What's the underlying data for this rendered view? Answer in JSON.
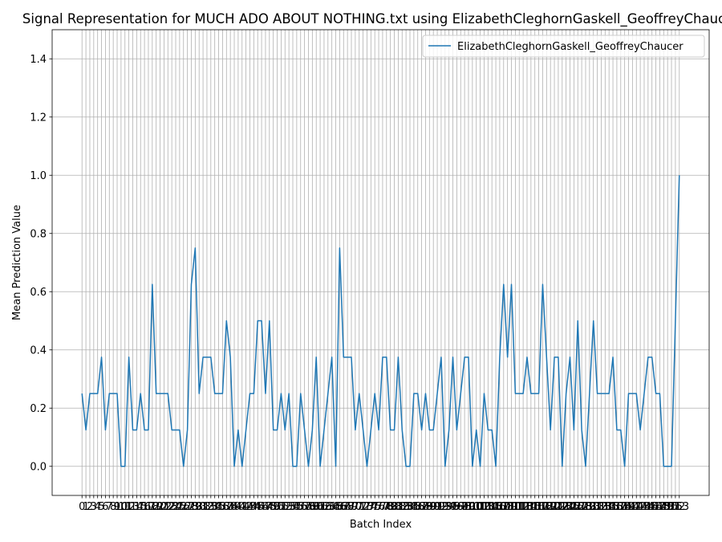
{
  "chart_data": {
    "type": "line",
    "title": "Signal Representation for MUCH ADO ABOUT NOTHING.txt using ElizabethCleghornGaskell_GeoffreyChaucer",
    "xlabel": "Batch Index",
    "ylabel": "Mean Prediction Value",
    "x": [
      0,
      1,
      2,
      3,
      4,
      5,
      6,
      7,
      8,
      9,
      10,
      11,
      12,
      13,
      14,
      15,
      16,
      17,
      18,
      19,
      20,
      21,
      22,
      23,
      24,
      25,
      26,
      27,
      28,
      29,
      30,
      31,
      32,
      33,
      34,
      35,
      36,
      37,
      38,
      39,
      40,
      41,
      42,
      43,
      44,
      45,
      46,
      47,
      48,
      49,
      50,
      51,
      52,
      53,
      54,
      55,
      56,
      57,
      58,
      59,
      60,
      61,
      62,
      63,
      64,
      65,
      66,
      67,
      68,
      69,
      70,
      71,
      72,
      73,
      74,
      75,
      76,
      77,
      78,
      79,
      80,
      81,
      82,
      83,
      84,
      85,
      86,
      87,
      88,
      89,
      90,
      91,
      92,
      93,
      94,
      95,
      96,
      97,
      98,
      99,
      100,
      101,
      102,
      103,
      104,
      105,
      106,
      107,
      108,
      109,
      110,
      111,
      112,
      113,
      114,
      115,
      116,
      117,
      118,
      119,
      120,
      121,
      122,
      123,
      124,
      125,
      126,
      127,
      128,
      129,
      130,
      131,
      132,
      133,
      134,
      135,
      136,
      137,
      138,
      139,
      140,
      141,
      142,
      143,
      144,
      145,
      146,
      147,
      148,
      149,
      150,
      151,
      152,
      153
    ],
    "series": [
      {
        "name": "ElizabethCleghornGaskell_GeoffreyChaucer",
        "color": "#1f77b4",
        "values": [
          0.25,
          0.125,
          0.25,
          0.25,
          0.25,
          0.375,
          0.125,
          0.25,
          0.25,
          0.25,
          0,
          0,
          0.375,
          0.125,
          0.125,
          0.25,
          0.125,
          0.125,
          0.625,
          0.25,
          0.25,
          0.25,
          0.25,
          0.125,
          0.125,
          0.125,
          0,
          0.125,
          0.625,
          0.75,
          0.25,
          0.375,
          0.375,
          0.375,
          0.25,
          0.25,
          0.25,
          0.5,
          0.375,
          0,
          0.125,
          0,
          0.125,
          0.25,
          0.25,
          0.5,
          0.5,
          0.25,
          0.5,
          0.125,
          0.125,
          0.25,
          0.125,
          0.25,
          0,
          0,
          0.25,
          0.125,
          0,
          0.125,
          0.375,
          0,
          0.125,
          0.25,
          0.375,
          0,
          0.75,
          0.375,
          0.375,
          0.375,
          0.125,
          0.25,
          0.125,
          0,
          0.125,
          0.25,
          0.125,
          0.375,
          0.375,
          0.125,
          0.125,
          0.375,
          0.125,
          0,
          0,
          0.25,
          0.25,
          0.125,
          0.25,
          0.125,
          0.125,
          0.25,
          0.375,
          0,
          0.125,
          0.375,
          0.125,
          0.25,
          0.375,
          0.375,
          0,
          0.125,
          0,
          0.25,
          0.125,
          0.125,
          0,
          0.375,
          0.625,
          0.375,
          0.625,
          0.25,
          0.25,
          0.25,
          0.375,
          0.25,
          0.25,
          0.25,
          0.625,
          0.375,
          0.125,
          0.375,
          0.375,
          0,
          0.25,
          0.375,
          0.125,
          0.5,
          0.125,
          0,
          0.25,
          0.5,
          0.25,
          0.25,
          0.25,
          0.25,
          0.375,
          0.125,
          0.125,
          0,
          0.25,
          0.25,
          0.25,
          0.125,
          0.25,
          0.375,
          0.375,
          0.25,
          0.25,
          0,
          0,
          0,
          0.5,
          1.0
        ]
      }
    ],
    "xlim": [
      -7.65,
      160.65
    ],
    "xticks": [
      0,
      1,
      2,
      3,
      4,
      5,
      6,
      7,
      8,
      9,
      10,
      11,
      12,
      13,
      14,
      15,
      16,
      17,
      18,
      19,
      20,
      21,
      22,
      23,
      24,
      25,
      26,
      27,
      28,
      29,
      30,
      31,
      32,
      33,
      34,
      35,
      36,
      37,
      38,
      39,
      40,
      41,
      42,
      43,
      44,
      45,
      46,
      47,
      48,
      49,
      50,
      51,
      52,
      53,
      54,
      55,
      56,
      57,
      58,
      59,
      60,
      61,
      62,
      63,
      64,
      65,
      66,
      67,
      68,
      69,
      70,
      71,
      72,
      73,
      74,
      75,
      76,
      77,
      78,
      79,
      80,
      81,
      82,
      83,
      84,
      85,
      86,
      87,
      88,
      89,
      90,
      91,
      92,
      93,
      94,
      95,
      96,
      97,
      98,
      99,
      100,
      101,
      102,
      103,
      104,
      105,
      106,
      107,
      108,
      109,
      110,
      111,
      112,
      113,
      114,
      115,
      116,
      117,
      118,
      119,
      120,
      121,
      122,
      123,
      124,
      125,
      126,
      127,
      128,
      129,
      130,
      131,
      132,
      133,
      134,
      135,
      136,
      137,
      138,
      139,
      140,
      141,
      142,
      143,
      144,
      145,
      146,
      147,
      148,
      149,
      150,
      151,
      152,
      153
    ],
    "ylim": [
      -0.1,
      1.5
    ],
    "yticks": [
      {
        "value": 0,
        "label": "0.0"
      },
      0.2,
      0.4,
      0.6,
      0.8,
      {
        "value": 1,
        "label": "1.0"
      },
      1.2,
      1.4
    ],
    "grid": true,
    "legend": "upper right"
  }
}
